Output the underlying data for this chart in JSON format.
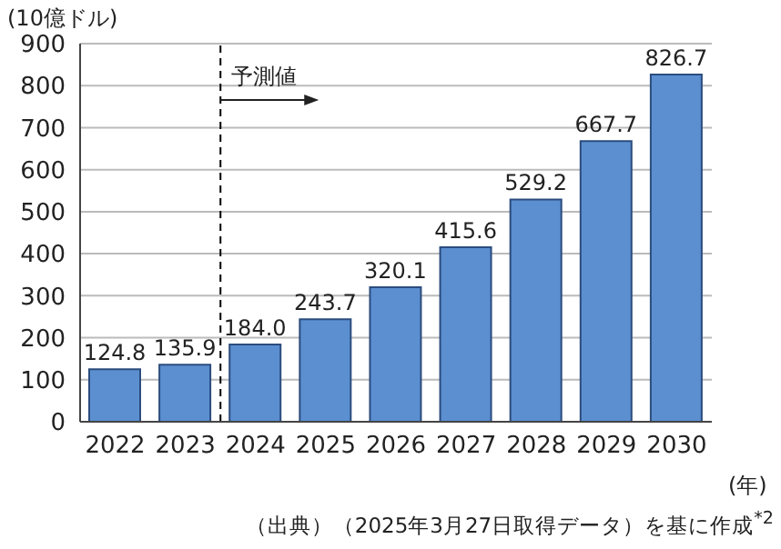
{
  "chart_data": {
    "type": "bar",
    "ylabel": "(10億ドル)",
    "xlabel": "(年)",
    "categories": [
      "2022",
      "2023",
      "2024",
      "2025",
      "2026",
      "2027",
      "2028",
      "2029",
      "2030"
    ],
    "values": [
      124.8,
      135.9,
      184.0,
      243.7,
      320.1,
      415.6,
      529.2,
      667.7,
      826.7
    ],
    "value_labels": [
      "124.8",
      "135.9",
      "184.0",
      "243.7",
      "320.1",
      "415.6",
      "529.2",
      "667.7",
      "826.7"
    ],
    "color": "#5b8fd0",
    "ylim": [
      0,
      900
    ],
    "yticks": [
      0,
      100,
      200,
      300,
      400,
      500,
      600,
      700,
      800,
      900
    ],
    "grid": "y",
    "ref_lines": [
      {
        "axis": "x",
        "value": "2024",
        "label": "予測値",
        "line_style": "dashed",
        "color": "#000000"
      }
    ],
    "annotations": [
      "（出典）（2025年3月27日取得データ）を基に作成$^{*2}$"
    ]
  }
}
